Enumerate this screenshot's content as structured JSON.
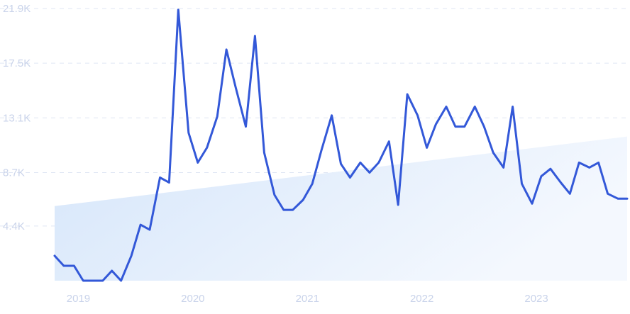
{
  "chart_data": {
    "type": "line",
    "title": "",
    "xlabel": "",
    "ylabel": "",
    "grid": true,
    "legend": "none",
    "y_ticks": [
      "4.4K",
      "8.7K",
      "13.1K",
      "17.5K",
      "21.9K"
    ],
    "y_tick_values": [
      4400,
      8700,
      13100,
      17500,
      21900
    ],
    "ylim": [
      0,
      21900
    ],
    "x_ticks": [
      "2019",
      "2020",
      "2021",
      "2022",
      "2023"
    ],
    "x_tick_values": [
      2019.0,
      2020.0,
      2021.0,
      2022.0,
      2023.0
    ],
    "xlim": [
      2018.96,
      2023.83
    ],
    "line_color": "#3358d8",
    "trend_fill_color": "#dbe8fa",
    "series": [
      {
        "x": [
          2018.96,
          2019.04,
          2019.13,
          2019.21,
          2019.29,
          2019.38,
          2019.46,
          2019.54,
          2019.63,
          2019.71,
          2019.79,
          2019.88,
          2019.96,
          2020.04,
          2020.13,
          2020.21,
          2020.29,
          2020.38,
          2020.46,
          2020.54,
          2020.63,
          2020.71,
          2020.79,
          2020.88,
          2020.96,
          2021.04,
          2021.13,
          2021.21,
          2021.29,
          2021.38,
          2021.46,
          2021.54,
          2021.63,
          2021.71,
          2021.79,
          2021.88,
          2021.96,
          2022.04,
          2022.13,
          2022.21,
          2022.29,
          2022.38,
          2022.46,
          2022.54,
          2022.63,
          2022.71,
          2022.79,
          2022.88,
          2022.96,
          2023.04,
          2023.13,
          2023.21,
          2023.29,
          2023.38,
          2023.46,
          2023.54,
          2023.63,
          2023.71,
          2023.79,
          2023.88,
          2023.96
        ],
        "y": [
          2000,
          1200,
          1200,
          0,
          0,
          0,
          800,
          0,
          2000,
          4500,
          4100,
          8300,
          7900,
          21800,
          11900,
          9500,
          10700,
          13200,
          18600,
          15600,
          12400,
          19700,
          10300,
          6900,
          5700,
          5700,
          6500,
          7800,
          10500,
          13300,
          9400,
          8300,
          9500,
          8700,
          9500,
          11200,
          6100,
          15000,
          13300,
          10700,
          12600,
          14000,
          12400,
          12400,
          14000,
          12400,
          10300,
          9100,
          14000,
          7800,
          6200,
          8400,
          9000,
          7900,
          7000,
          9500,
          9100,
          9500,
          7000,
          6600,
          6600
        ]
      }
    ],
    "trend": {
      "x": [
        2018.96,
        2023.96
      ],
      "y": [
        6000,
        11600
      ]
    }
  }
}
